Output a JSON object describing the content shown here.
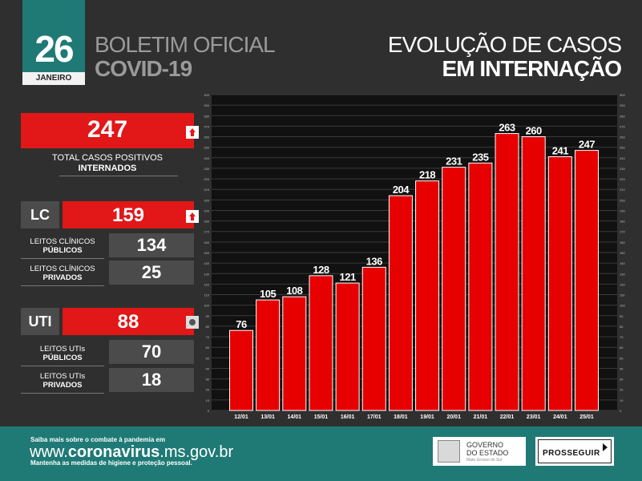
{
  "header": {
    "day": "26",
    "month": "JANEIRO",
    "bulletin_line1": "BOLETIM OFICIAL",
    "bulletin_line2": "COVID-19",
    "title_line1": "EVOLUÇÃO DE CASOS",
    "title_line2": "EM INTERNAÇÃO"
  },
  "summary": {
    "total_value": "247",
    "total_label_line1": "TOTAL CASOS POSITIVOS",
    "total_label_line2": "INTERNADOS",
    "lc": {
      "label": "LC",
      "value": "159",
      "sub": [
        {
          "line1": "LEITOS CLÍNICOS",
          "line2": "PÚBLICOS",
          "value": "134"
        },
        {
          "line1": "LEITOS CLÍNICOS",
          "line2": "PRIVADOS",
          "value": "25"
        }
      ]
    },
    "uti": {
      "label": "UTI",
      "value": "88",
      "sub": [
        {
          "line1": "LEITOS UTIs",
          "line2": "PÚBLICOS",
          "value": "70"
        },
        {
          "line1": "LEITOS UTIs",
          "line2": "PRIVADOS",
          "value": "18"
        }
      ]
    },
    "icons": [
      "arrow-up-icon",
      "arrow-up-icon",
      "stable-icon"
    ]
  },
  "chart_data": {
    "type": "bar",
    "title": "EVOLUÇÃO DE CASOS EM INTERNAÇÃO",
    "categories": [
      "12/01",
      "13/01",
      "14/01",
      "15/01",
      "16/01",
      "17/01",
      "18/01",
      "19/01",
      "20/01",
      "21/01",
      "22/01",
      "23/01",
      "24/01",
      "25/01"
    ],
    "values": [
      76,
      105,
      108,
      128,
      121,
      136,
      204,
      218,
      231,
      235,
      263,
      260,
      241,
      247
    ],
    "ylim": [
      0,
      300
    ],
    "ytick_step": 10,
    "xlabel": "",
    "ylabel": "",
    "grid": true,
    "bar_color": "#e60000",
    "legend": "none"
  },
  "footer": {
    "line1": "Saiba mais sobre o combate à pandemia em",
    "url_prefix": "www.",
    "url_bold": "coronavirus",
    "url_suffix": ".ms.gov.br",
    "line3": "Mantenha as medidas de higiene e proteção pessoal.",
    "gov_line1": "GOVERNO",
    "gov_line2": "DO ESTADO",
    "gov_line3": "Mato Grosso do Sul",
    "program": "PROSSEGUIR"
  },
  "colors": {
    "accent": "#1f7a76",
    "red": "#e21717",
    "background": "#2f2f2f"
  }
}
